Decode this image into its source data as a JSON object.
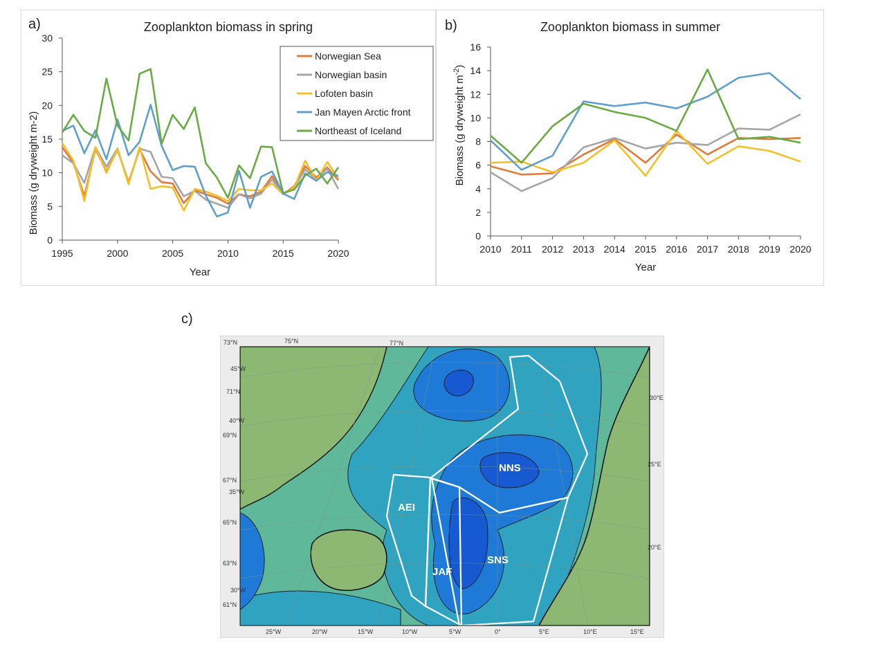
{
  "chart_data": [
    {
      "panel_label": "a)",
      "type": "line",
      "title": "Zooplankton biomass in spring",
      "xlabel": "Year",
      "ylabel": "Biomass (g dryweight  m-2)",
      "xlim": [
        1995,
        2020
      ],
      "ylim": [
        0,
        30
      ],
      "xticks": [
        1995,
        2000,
        2005,
        2010,
        2015,
        2020
      ],
      "yticks": [
        0,
        5,
        10,
        15,
        20,
        25,
        30
      ],
      "grid": false,
      "legend": "top-right",
      "x": [
        1995,
        1996,
        1997,
        1998,
        1999,
        2000,
        2001,
        2002,
        2003,
        2004,
        2005,
        2006,
        2007,
        2008,
        2009,
        2010,
        2011,
        2012,
        2013,
        2014,
        2015,
        2016,
        2017,
        2018,
        2019,
        2020
      ],
      "series": [
        {
          "name": "Norwegian Sea",
          "color": "#e07b39",
          "values": [
            13.8,
            11.5,
            6.5,
            13.5,
            10.2,
            13.4,
            8.6,
            13.5,
            10.2,
            8.6,
            8.4,
            5.5,
            7.4,
            6.8,
            6.3,
            5.4,
            6.8,
            6.5,
            7.2,
            9.5,
            6.8,
            8.0,
            11.0,
            9.3,
            10.8,
            8.9
          ]
        },
        {
          "name": "Norwegian basin",
          "color": "#a5a5a5",
          "values": [
            12.6,
            11.4,
            8.5,
            13.8,
            10.9,
            13.6,
            8.4,
            13.6,
            13.1,
            9.4,
            9.2,
            6.5,
            7.3,
            6.0,
            5.4,
            4.8,
            6.8,
            6.2,
            6.9,
            9.0,
            6.8,
            7.8,
            10.5,
            9.0,
            10.6,
            7.6
          ]
        },
        {
          "name": "Lofoten basin",
          "color": "#f5bf2a",
          "values": [
            14.4,
            11.8,
            5.8,
            13.8,
            10.0,
            13.5,
            8.3,
            13.8,
            7.6,
            8.0,
            7.8,
            4.4,
            7.6,
            7.2,
            6.6,
            5.8,
            7.6,
            7.4,
            7.4,
            8.4,
            6.8,
            7.8,
            11.8,
            8.8,
            11.6,
            9.2
          ]
        },
        {
          "name": "Jan Mayen Arctic front",
          "color": "#5f9fcd",
          "values": [
            16.2,
            17.0,
            12.9,
            16.3,
            12.0,
            17.9,
            12.6,
            14.6,
            20.1,
            14.0,
            10.4,
            11.0,
            10.9,
            6.6,
            3.5,
            4.1,
            10.3,
            4.8,
            9.4,
            10.2,
            6.9,
            6.1,
            9.9,
            8.8,
            10.1,
            9.5
          ]
        },
        {
          "name": "Northeast of Iceland",
          "color": "#6aaa45",
          "values": [
            16.0,
            18.6,
            16.2,
            15.2,
            24.0,
            17.0,
            14.8,
            24.7,
            25.4,
            14.3,
            18.6,
            16.5,
            19.7,
            11.4,
            9.3,
            6.3,
            11.1,
            9.2,
            13.9,
            13.8,
            7.0,
            7.5,
            9.6,
            10.6,
            8.4,
            10.8
          ]
        }
      ]
    },
    {
      "panel_label": "b)",
      "type": "line",
      "title": "Zooplankton biomass in summer",
      "xlabel": "Year",
      "ylabel": "Biomass  (g dryweight  m",
      "ylabel_sup": "-2",
      "ylabel_end": ")",
      "xlim": [
        2010,
        2020
      ],
      "ylim": [
        0,
        16
      ],
      "xticks": [
        2010,
        2011,
        2012,
        2013,
        2014,
        2015,
        2016,
        2017,
        2018,
        2019,
        2020
      ],
      "yticks": [
        0,
        2,
        4,
        6,
        8,
        10,
        12,
        14,
        16
      ],
      "grid": false,
      "x": [
        2010,
        2011,
        2012,
        2013,
        2014,
        2015,
        2016,
        2017,
        2018,
        2019,
        2020
      ],
      "series": [
        {
          "color": "#e07b39",
          "values": [
            5.9,
            5.2,
            5.3,
            6.9,
            8.2,
            6.2,
            8.6,
            6.9,
            8.3,
            8.2,
            8.3
          ]
        },
        {
          "color": "#a5a5a5",
          "values": [
            5.4,
            3.8,
            4.9,
            7.5,
            8.3,
            7.4,
            7.9,
            7.7,
            9.1,
            9.0,
            10.3
          ]
        },
        {
          "color": "#f5bf2a",
          "values": [
            6.2,
            6.3,
            5.4,
            6.2,
            8.1,
            5.1,
            8.9,
            6.1,
            7.6,
            7.2,
            6.3
          ]
        },
        {
          "color": "#5f9fcd",
          "values": [
            8.1,
            5.6,
            6.8,
            11.4,
            11.0,
            11.3,
            10.8,
            11.8,
            13.4,
            13.8,
            11.6
          ]
        },
        {
          "color": "#6aaa45",
          "values": [
            8.5,
            6.2,
            9.3,
            11.2,
            10.5,
            10.0,
            8.9,
            14.1,
            8.2,
            8.4,
            7.9
          ]
        }
      ]
    }
  ],
  "map": {
    "panel_label": "c)",
    "colors": {
      "land": "#8db873",
      "ocean_shallow": "#5fb89a",
      "ocean_mid": "#2fa3c0",
      "ocean_deep": "#1f79d6",
      "ocean_deepest": "#1659d0",
      "boundary": "#ffffff"
    },
    "regions": [
      "NNS",
      "AEI",
      "SNS",
      "JAF"
    ],
    "left_labels": [
      "73°N",
      "45°W",
      "71°N",
      "40°W",
      "69°N",
      "67°N",
      "35°W",
      "65°N",
      "63°N",
      "30°W",
      "61°N"
    ],
    "top_labels": [
      "75°N",
      "77°N"
    ],
    "bottom_labels": [
      "25°W",
      "20°W",
      "15°W",
      "10°W",
      "5°W",
      "0°",
      "5°E",
      "10°E",
      "15°E"
    ],
    "right_labels": [
      "30°E",
      "25°E",
      "20°E"
    ]
  }
}
